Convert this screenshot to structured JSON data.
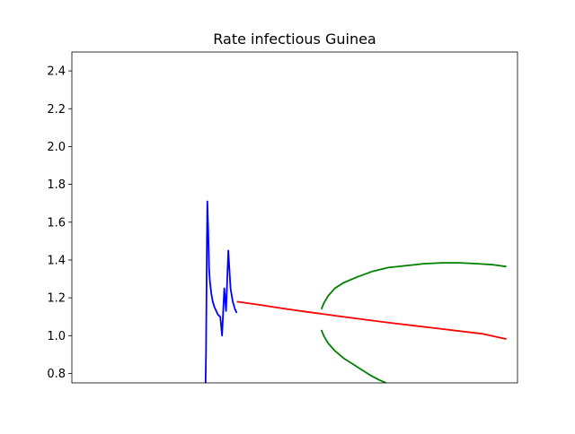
{
  "chart_data": {
    "type": "line",
    "title": "Rate infectious Guinea",
    "xlabel": "",
    "ylabel": "",
    "xlim": [
      0,
      100
    ],
    "ylim": [
      0.75,
      2.5
    ],
    "xticks_visible": false,
    "yticks": [
      0.8,
      1.0,
      1.2,
      1.4,
      1.6,
      1.8,
      2.0,
      2.2,
      2.4
    ],
    "ytick_labels": [
      "0.8",
      "1.0",
      "1.2",
      "1.4",
      "1.6",
      "1.8",
      "2.0",
      "2.2",
      "2.4"
    ],
    "grid": false,
    "legend": "none",
    "series": [
      {
        "color": "#0000ff",
        "x": [
          30.0,
          30.1,
          30.2,
          30.3,
          30.4,
          30.6,
          30.8,
          31.0,
          31.3,
          31.6,
          32.0,
          32.4,
          32.8,
          33.3,
          33.7,
          34.2,
          34.6,
          35.1,
          35.6,
          36.1,
          36.6,
          37.0
        ],
        "y": [
          0.75,
          0.9,
          1.2,
          1.5,
          1.71,
          1.55,
          1.35,
          1.28,
          1.22,
          1.18,
          1.15,
          1.13,
          1.11,
          1.1,
          1.0,
          1.25,
          1.13,
          1.45,
          1.25,
          1.18,
          1.14,
          1.12
        ]
      },
      {
        "color": "#ff0000",
        "x": [
          37.0,
          42.0,
          47.0,
          52.0,
          57.0,
          62.0,
          67.0,
          72.0,
          77.0,
          82.0,
          87.0,
          92.0,
          97.5
        ],
        "y": [
          1.18,
          1.163,
          1.145,
          1.128,
          1.112,
          1.096,
          1.081,
          1.066,
          1.052,
          1.038,
          1.024,
          1.01,
          0.982
        ]
      },
      {
        "color": "#008000",
        "x": [
          56.0,
          56.5,
          57.5,
          59.0,
          61.0,
          64.0,
          67.5,
          71.0,
          75.0,
          79.0,
          83.0,
          87.0,
          91.0,
          94.5,
          97.5
        ],
        "y": [
          1.14,
          1.17,
          1.21,
          1.25,
          1.28,
          1.31,
          1.34,
          1.36,
          1.37,
          1.38,
          1.385,
          1.385,
          1.38,
          1.375,
          1.365
        ]
      },
      {
        "color": "#008000",
        "x": [
          56.0,
          56.5,
          57.5,
          59.0,
          61.0,
          63.0,
          65.0,
          67.0,
          69.0,
          70.5
        ],
        "y": [
          1.03,
          1.0,
          0.96,
          0.92,
          0.88,
          0.85,
          0.82,
          0.79,
          0.765,
          0.75
        ]
      }
    ]
  }
}
